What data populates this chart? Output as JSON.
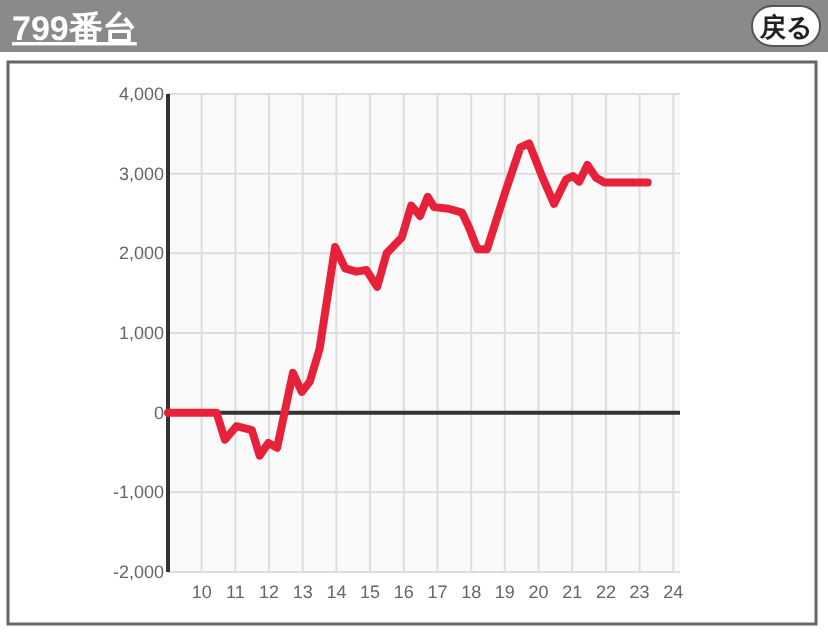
{
  "chart_data": {
    "type": "line",
    "title": "799番台",
    "annotations": [
      "戻る"
    ],
    "x": [
      9,
      10.44,
      10.69,
      11.03,
      11.49,
      11.72,
      11.98,
      12.24,
      12.71,
      12.97,
      13.21,
      13.5,
      13.96,
      14.26,
      14.59,
      14.89,
      15.21,
      15.49,
      15.94,
      16.22,
      16.48,
      16.71,
      16.9,
      17.33,
      17.73,
      17.93,
      18.19,
      18.47,
      19.02,
      19.46,
      19.72,
      20.12,
      20.46,
      20.82,
      21.02,
      21.21,
      21.45,
      21.71,
      21.96,
      23.24
    ],
    "series": [
      {
        "color": "#e8213a",
        "values": [
          0,
          0,
          -340,
          -170,
          -220,
          -540,
          -380,
          -440,
          500,
          260,
          390,
          800,
          2080,
          1810,
          1770,
          1790,
          1580,
          2000,
          2200,
          2600,
          2470,
          2710,
          2580,
          2560,
          2510,
          2330,
          2050,
          2050,
          2780,
          3330,
          3380,
          2950,
          2620,
          2930,
          2970,
          2900,
          3110,
          2950,
          2890,
          2890
        ]
      }
    ],
    "xlim": [
      9,
      24.2
    ],
    "xticks": [
      10,
      11,
      12,
      13,
      14,
      15,
      16,
      17,
      18,
      19,
      20,
      21,
      22,
      23,
      24
    ],
    "ylim": [
      -2000,
      4000
    ],
    "yticks": [
      {
        "value": -2000,
        "label": "-2,000"
      },
      {
        "value": -1000,
        "label": "-1,000"
      },
      0,
      {
        "value": 1000,
        "label": "1,000"
      },
      {
        "value": 2000,
        "label": "2,000"
      },
      {
        "value": 3000,
        "label": "3,000"
      },
      {
        "value": 4000,
        "label": "4,000"
      }
    ],
    "grid": true,
    "marker": "none",
    "line_style": "solid"
  }
}
